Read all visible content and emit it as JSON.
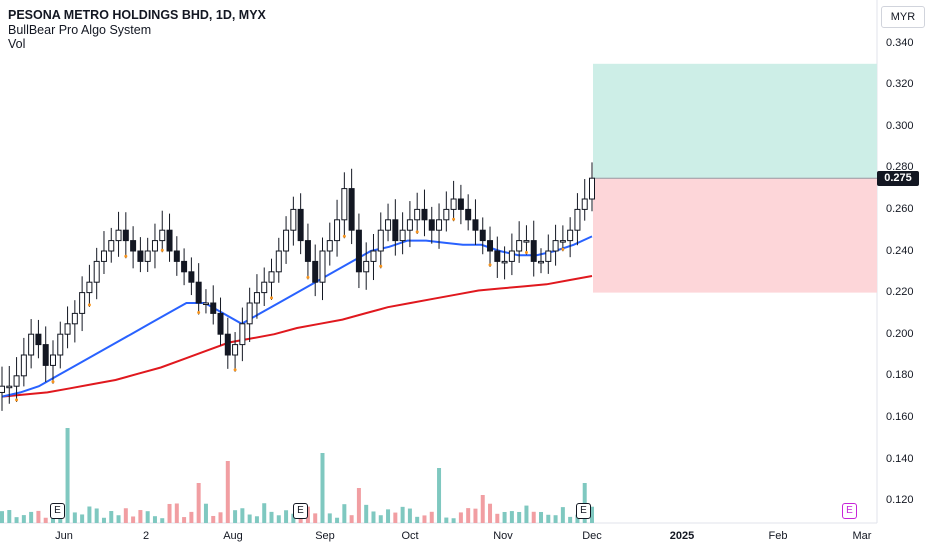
{
  "legend": {
    "title": "PESONA METRO HOLDINGS BHD, 1D, MYX",
    "indicator": "BullBear Pro Algo System",
    "volume": "Vol"
  },
  "currency": "MYR",
  "current_price": "0.275",
  "y_axis_labels": [
    "0.340",
    "0.320",
    "0.300",
    "0.280",
    "0.260",
    "0.240",
    "0.220",
    "0.200",
    "0.180",
    "0.160",
    "0.140",
    "0.120"
  ],
  "x_axis_labels": [
    {
      "text": "Jun",
      "bold": false
    },
    {
      "text": "2",
      "bold": false
    },
    {
      "text": "Aug",
      "bold": false
    },
    {
      "text": "Sep",
      "bold": false
    },
    {
      "text": "Oct",
      "bold": false
    },
    {
      "text": "Nov",
      "bold": false
    },
    {
      "text": "Dec",
      "bold": false
    },
    {
      "text": "2025",
      "bold": true
    },
    {
      "text": "Feb",
      "bold": false
    },
    {
      "text": "Mar",
      "bold": false
    }
  ],
  "earnings_badges": [
    {
      "label": "E",
      "future": false
    },
    {
      "label": "E",
      "future": false
    },
    {
      "label": "E",
      "future": false
    },
    {
      "label": "E",
      "future": true
    }
  ],
  "colors": {
    "up": "#131722",
    "down": "#131722",
    "ma_fast": "#2962ff",
    "ma_slow": "#e0181e",
    "vol_up": "#7fc8c0",
    "vol_down": "#f19ea2",
    "target_zone": "#cdeee7",
    "stop_zone": "#fdd6d9",
    "dot": "#f7941d"
  },
  "chart_data": {
    "type": "candlestick",
    "title": "PESONA METRO HOLDINGS BHD, 1D, MYX",
    "ylim": [
      0.11,
      0.35
    ],
    "close_series": [
      0.175,
      0.175,
      0.18,
      0.19,
      0.2,
      0.195,
      0.185,
      0.19,
      0.2,
      0.205,
      0.21,
      0.22,
      0.225,
      0.235,
      0.24,
      0.245,
      0.25,
      0.245,
      0.24,
      0.235,
      0.24,
      0.245,
      0.25,
      0.24,
      0.235,
      0.23,
      0.225,
      0.215,
      0.215,
      0.21,
      0.2,
      0.19,
      0.195,
      0.205,
      0.215,
      0.22,
      0.225,
      0.23,
      0.24,
      0.25,
      0.26,
      0.245,
      0.235,
      0.225,
      0.24,
      0.245,
      0.255,
      0.27,
      0.25,
      0.23,
      0.235,
      0.24,
      0.25,
      0.255,
      0.245,
      0.25,
      0.255,
      0.26,
      0.255,
      0.25,
      0.255,
      0.26,
      0.265,
      0.26,
      0.255,
      0.25,
      0.245,
      0.24,
      0.235,
      0.235,
      0.24,
      0.245,
      0.245,
      0.235,
      0.235,
      0.24,
      0.245,
      0.245,
      0.25,
      0.26,
      0.265,
      0.275
    ],
    "ma_fast_series": [
      0.17,
      0.172,
      0.175,
      0.18,
      0.185,
      0.19,
      0.195,
      0.2,
      0.205,
      0.21,
      0.215,
      0.215,
      0.21,
      0.205,
      0.21,
      0.215,
      0.22,
      0.225,
      0.23,
      0.235,
      0.24,
      0.242,
      0.245,
      0.245,
      0.244,
      0.243,
      0.243,
      0.24,
      0.238,
      0.238,
      0.24,
      0.243,
      0.247
    ],
    "ma_slow_series": [
      0.17,
      0.171,
      0.172,
      0.174,
      0.176,
      0.178,
      0.181,
      0.184,
      0.188,
      0.192,
      0.196,
      0.198,
      0.2,
      0.203,
      0.205,
      0.207,
      0.21,
      0.213,
      0.215,
      0.217,
      0.219,
      0.221,
      0.222,
      0.223,
      0.224,
      0.226,
      0.228
    ],
    "target_zone": [
      0.275,
      0.33
    ],
    "stop_zone": [
      0.22,
      0.275
    ]
  }
}
